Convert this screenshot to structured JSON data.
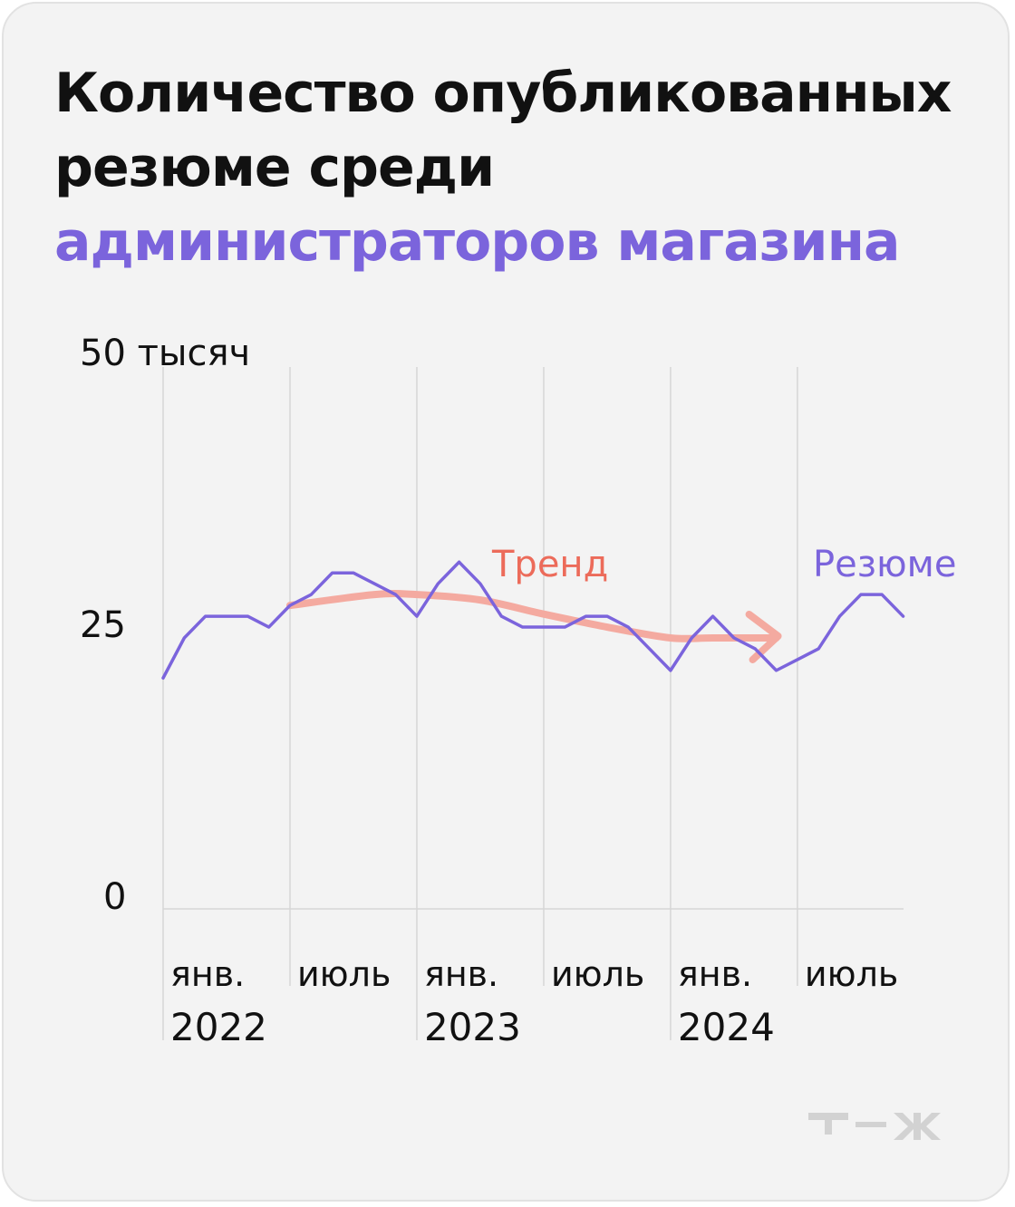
{
  "title": {
    "line1": "Количество опубликованных",
    "line2": "резюме среди",
    "line3": "администраторов магазина"
  },
  "colors": {
    "background": "#f3f3f3",
    "title_text": "#111111",
    "accent": "#7b64dc",
    "series_line": "#7b64dc",
    "trend": "#f4aaa0",
    "trend_label": "#ec6b5a",
    "grid": "#d6d6d6",
    "axis_text": "#111111"
  },
  "brand": {
    "logo": "Т—Ж"
  },
  "chart_data": {
    "type": "line",
    "title": "Количество опубликованных резюме среди администраторов магазина",
    "y_ticks": [
      {
        "value": 0,
        "label": "0"
      },
      {
        "value": 25,
        "label": "25"
      },
      {
        "value": 50,
        "label": "50 тысяч"
      }
    ],
    "ylim": [
      0,
      50
    ],
    "x_ticks": [
      {
        "date": "2022-01",
        "label1": "янв.",
        "label2": "2022"
      },
      {
        "date": "2022-07",
        "label1": "июль",
        "label2": ""
      },
      {
        "date": "2023-01",
        "label1": "янв.",
        "label2": "2023"
      },
      {
        "date": "2023-07",
        "label1": "июль",
        "label2": ""
      },
      {
        "date": "2024-01",
        "label1": "янв.",
        "label2": "2024"
      },
      {
        "date": "2024-07",
        "label1": "июль",
        "label2": ""
      }
    ],
    "grid": "vertical",
    "series": [
      {
        "name": "Резюме",
        "x": [
          "2022-01",
          "2022-02",
          "2022-03",
          "2022-04",
          "2022-05",
          "2022-06",
          "2022-07",
          "2022-08",
          "2022-09",
          "2022-10",
          "2022-11",
          "2022-12",
          "2023-01",
          "2023-02",
          "2023-03",
          "2023-04",
          "2023-05",
          "2023-06",
          "2023-07",
          "2023-08",
          "2023-09",
          "2023-10",
          "2023-11",
          "2023-12",
          "2024-01",
          "2024-02",
          "2024-03",
          "2024-04",
          "2024-05",
          "2024-06",
          "2024-07",
          "2024-08",
          "2024-09",
          "2024-10",
          "2024-11",
          "2024-12"
        ],
        "values": [
          21.3,
          25.0,
          27.0,
          27.0,
          27.0,
          26.0,
          28.0,
          29.0,
          31.0,
          31.0,
          30.0,
          29.0,
          27.0,
          30.0,
          32.0,
          30.0,
          27.0,
          26.0,
          26.0,
          26.0,
          27.0,
          27.0,
          26.0,
          24.0,
          22.0,
          25.0,
          27.0,
          25.0,
          24.0,
          22.0,
          23.0,
          24.0,
          27.0,
          29.0,
          29.0,
          27.0
        ]
      }
    ],
    "annotations": [
      {
        "text": "Тренд",
        "kind": "trend-arrow",
        "points": [
          {
            "x": "2022-07",
            "y": 28.0
          },
          {
            "x": "2022-11",
            "y": 29.0
          },
          {
            "x": "2023-01",
            "y": 29.0
          },
          {
            "x": "2023-04",
            "y": 28.5
          },
          {
            "x": "2023-07",
            "y": 27.2
          },
          {
            "x": "2023-10",
            "y": 26.0
          },
          {
            "x": "2024-01",
            "y": 25.0
          },
          {
            "x": "2024-03",
            "y": 25.0
          },
          {
            "x": "2024-06",
            "y": 25.0
          }
        ]
      },
      {
        "text": "Резюме",
        "kind": "series-label"
      }
    ]
  }
}
